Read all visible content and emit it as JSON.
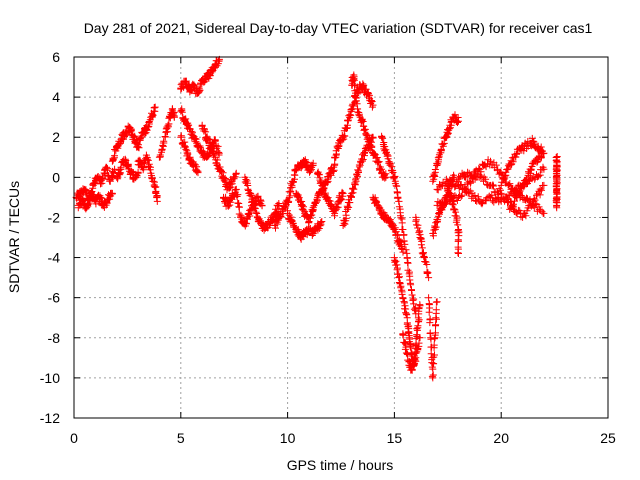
{
  "chart_data": {
    "type": "scatter",
    "title": "Day 281 of 2021, Sidereal Day-to-day VTEC variation (SDTVAR) for receiver cas1",
    "xlabel": "GPS time / hours",
    "ylabel": "SDTVAR / TECUs",
    "xlim": [
      0,
      25
    ],
    "ylim": [
      -12,
      6
    ],
    "xticks": [
      0,
      5,
      10,
      15,
      20,
      25
    ],
    "yticks": [
      -12,
      -10,
      -8,
      -6,
      -4,
      -2,
      0,
      2,
      4,
      6
    ],
    "grid": true,
    "marker": "+",
    "series": [
      {
        "name": "cas1",
        "color": "#ff0000",
        "tracks": [
          [
            [
              0.1,
              -1.0
            ],
            [
              0.3,
              -0.8
            ],
            [
              0.5,
              -0.6
            ],
            [
              0.7,
              -1.1
            ],
            [
              0.9,
              -0.4
            ],
            [
              1.1,
              0.0
            ],
            [
              1.3,
              -0.3
            ],
            [
              1.5,
              0.5
            ],
            [
              1.7,
              -0.2
            ],
            [
              1.9,
              0.4
            ]
          ],
          [
            [
              0.2,
              -1.4
            ],
            [
              0.4,
              -1.2
            ],
            [
              0.6,
              -1.5
            ],
            [
              0.8,
              -0.9
            ],
            [
              1.0,
              -1.2
            ],
            [
              1.2,
              -1.0
            ],
            [
              1.4,
              -1.4
            ],
            [
              1.6,
              -1.1
            ],
            [
              1.8,
              -0.8
            ]
          ],
          [
            [
              1.8,
              0.8
            ],
            [
              2.0,
              1.5
            ],
            [
              2.2,
              1.9
            ],
            [
              2.4,
              2.2
            ],
            [
              2.6,
              2.5
            ],
            [
              2.8,
              2.0
            ],
            [
              3.0,
              1.5
            ],
            [
              3.2,
              2.2
            ],
            [
              3.4,
              2.4
            ],
            [
              3.6,
              3.0
            ],
            [
              3.8,
              3.5
            ]
          ],
          [
            [
              2.0,
              0.0
            ],
            [
              2.2,
              0.5
            ],
            [
              2.4,
              0.9
            ],
            [
              2.6,
              0.3
            ],
            [
              2.8,
              0.0
            ],
            [
              3.0,
              0.2
            ]
          ],
          [
            [
              3.0,
              0.8
            ],
            [
              3.2,
              0.5
            ],
            [
              3.4,
              1.0
            ],
            [
              3.6,
              0.2
            ],
            [
              3.8,
              -0.5
            ],
            [
              3.9,
              -1.2
            ]
          ],
          [
            [
              4.0,
              1.0
            ],
            [
              4.2,
              1.8
            ],
            [
              4.4,
              2.6
            ],
            [
              4.6,
              3.4
            ],
            [
              4.7,
              3.0
            ]
          ],
          [
            [
              5.0,
              4.4
            ],
            [
              5.2,
              4.8
            ],
            [
              5.4,
              4.4
            ],
            [
              5.6,
              4.6
            ],
            [
              5.8,
              4.2
            ],
            [
              6.0,
              4.8
            ],
            [
              6.2,
              5.0
            ],
            [
              6.4,
              5.2
            ],
            [
              6.6,
              5.6
            ],
            [
              6.8,
              5.8
            ]
          ],
          [
            [
              5.0,
              3.3
            ],
            [
              5.2,
              2.8
            ],
            [
              5.4,
              2.4
            ],
            [
              5.6,
              2.0
            ],
            [
              5.8,
              1.6
            ],
            [
              6.0,
              1.2
            ],
            [
              6.2,
              1.0
            ],
            [
              6.4,
              1.4
            ],
            [
              6.6,
              1.8
            ],
            [
              6.8,
              1.2
            ]
          ],
          [
            [
              5.0,
              2.0
            ],
            [
              5.2,
              1.5
            ],
            [
              5.4,
              0.9
            ],
            [
              5.6,
              0.6
            ],
            [
              5.8,
              0.3
            ]
          ],
          [
            [
              6.0,
              2.6
            ],
            [
              6.2,
              2.0
            ],
            [
              6.4,
              1.6
            ],
            [
              6.6,
              1.0
            ],
            [
              6.8,
              0.4
            ],
            [
              7.0,
              0.0
            ],
            [
              7.2,
              -0.5
            ],
            [
              7.4,
              -0.2
            ],
            [
              7.6,
              0.2
            ]
          ],
          [
            [
              7.0,
              -1.0
            ],
            [
              7.2,
              -1.4
            ],
            [
              7.4,
              -1.0
            ],
            [
              7.6,
              -0.6
            ],
            [
              7.8,
              -2.0
            ],
            [
              8.0,
              -2.3
            ],
            [
              8.2,
              -1.8
            ],
            [
              8.4,
              -1.4
            ],
            [
              8.6,
              -1.0
            ],
            [
              8.8,
              -1.4
            ]
          ],
          [
            [
              8.0,
              0.0
            ],
            [
              8.2,
              -0.8
            ],
            [
              8.4,
              -1.2
            ],
            [
              8.6,
              -2.0
            ],
            [
              8.8,
              -2.4
            ],
            [
              9.0,
              -2.5
            ],
            [
              9.2,
              -2.2
            ],
            [
              9.4,
              -1.8
            ],
            [
              9.6,
              -1.4
            ]
          ],
          [
            [
              9.4,
              -2.4
            ],
            [
              9.6,
              -2.0
            ],
            [
              9.8,
              -1.6
            ],
            [
              10.0,
              -1.2
            ],
            [
              10.2,
              -0.4
            ],
            [
              10.4,
              0.4
            ],
            [
              10.6,
              0.6
            ],
            [
              10.8,
              0.8
            ],
            [
              11.0,
              0.4
            ],
            [
              11.2,
              0.6
            ]
          ],
          [
            [
              10.0,
              -1.8
            ],
            [
              10.2,
              -2.2
            ],
            [
              10.4,
              -2.6
            ],
            [
              10.6,
              -3.0
            ],
            [
              10.8,
              -2.8
            ],
            [
              11.0,
              -2.6
            ],
            [
              11.2,
              -2.8
            ],
            [
              11.4,
              -2.5
            ],
            [
              11.6,
              -2.2
            ]
          ],
          [
            [
              10.4,
              -0.8
            ],
            [
              10.6,
              -1.2
            ],
            [
              10.8,
              -1.8
            ],
            [
              11.0,
              -2.2
            ],
            [
              11.2,
              -1.6
            ],
            [
              11.4,
              -1.0
            ],
            [
              11.6,
              -0.6
            ],
            [
              11.8,
              -0.2
            ],
            [
              12.0,
              0.2
            ],
            [
              12.2,
              0.6
            ]
          ],
          [
            [
              11.4,
              0.2
            ],
            [
              11.6,
              -0.4
            ],
            [
              11.8,
              -1.0
            ],
            [
              12.0,
              -1.4
            ],
            [
              12.2,
              -1.8
            ],
            [
              12.4,
              -1.2
            ],
            [
              12.6,
              -0.8
            ]
          ],
          [
            [
              12.2,
              1.0
            ],
            [
              12.4,
              1.6
            ],
            [
              12.6,
              2.0
            ],
            [
              12.8,
              2.6
            ],
            [
              13.0,
              3.4
            ],
            [
              13.2,
              4.2
            ],
            [
              13.4,
              4.6
            ],
            [
              13.6,
              4.4
            ],
            [
              13.8,
              4.0
            ],
            [
              14.0,
              3.6
            ]
          ],
          [
            [
              12.6,
              -2.4
            ],
            [
              12.8,
              -1.6
            ],
            [
              13.0,
              -0.8
            ],
            [
              13.2,
              -0.2
            ],
            [
              13.4,
              0.6
            ],
            [
              13.6,
              1.2
            ],
            [
              13.8,
              1.6
            ],
            [
              14.0,
              2.0
            ]
          ],
          [
            [
              13.0,
              4.6
            ],
            [
              13.1,
              5.1
            ],
            [
              13.2,
              3.8
            ],
            [
              13.4,
              3.0
            ],
            [
              13.6,
              2.4
            ],
            [
              13.8,
              1.8
            ],
            [
              14.0,
              1.2
            ],
            [
              14.2,
              0.8
            ],
            [
              14.4,
              0.2
            ],
            [
              14.6,
              0.0
            ]
          ],
          [
            [
              14.0,
              -1.0
            ],
            [
              14.2,
              -1.4
            ],
            [
              14.4,
              -1.8
            ],
            [
              14.6,
              -2.0
            ],
            [
              14.8,
              -2.2
            ],
            [
              15.0,
              -2.6
            ],
            [
              15.2,
              -3.2
            ],
            [
              15.4,
              -3.6
            ]
          ],
          [
            [
              14.4,
              2.0
            ],
            [
              14.6,
              1.2
            ],
            [
              14.8,
              0.6
            ],
            [
              15.0,
              0.0
            ],
            [
              15.2,
              -1.2
            ],
            [
              15.4,
              -2.6
            ],
            [
              15.6,
              -4.0
            ],
            [
              15.8,
              -5.6
            ],
            [
              16.0,
              -6.8
            ]
          ],
          [
            [
              15.0,
              -4.0
            ],
            [
              15.2,
              -5.0
            ],
            [
              15.4,
              -6.0
            ],
            [
              15.6,
              -7.0
            ],
            [
              15.7,
              -8.0
            ],
            [
              15.8,
              -8.8
            ],
            [
              15.9,
              -9.4
            ],
            [
              16.0,
              -8.4
            ],
            [
              16.1,
              -7.4
            ],
            [
              16.2,
              -6.4
            ]
          ],
          [
            [
              15.4,
              -7.8
            ],
            [
              15.6,
              -8.8
            ],
            [
              15.8,
              -9.6
            ],
            [
              16.0,
              -9.0
            ],
            [
              16.2,
              -8.0
            ]
          ],
          [
            [
              16.6,
              -6.0
            ],
            [
              16.7,
              -8.0
            ],
            [
              16.8,
              -10.0
            ],
            [
              16.9,
              -8.0
            ],
            [
              17.0,
              -6.2
            ]
          ],
          [
            [
              16.8,
              -2.8
            ],
            [
              17.0,
              -2.2
            ],
            [
              17.2,
              -1.6
            ],
            [
              17.4,
              -1.0
            ],
            [
              17.6,
              -0.4
            ],
            [
              17.8,
              0.0
            ]
          ],
          [
            [
              16.8,
              -0.2
            ],
            [
              17.0,
              0.6
            ],
            [
              17.2,
              1.4
            ],
            [
              17.4,
              2.0
            ],
            [
              17.6,
              2.6
            ],
            [
              17.8,
              3.0
            ],
            [
              18.0,
              2.8
            ]
          ],
          [
            [
              17.6,
              -0.8
            ],
            [
              17.8,
              -1.6
            ],
            [
              18.0,
              -2.6
            ],
            [
              18.0,
              -3.8
            ]
          ],
          [
            [
              16.0,
              -2.0
            ],
            [
              16.2,
              -3.0
            ],
            [
              16.4,
              -4.0
            ],
            [
              16.6,
              -5.0
            ]
          ],
          [
            [
              17.0,
              -1.4
            ],
            [
              17.5,
              -1.2
            ],
            [
              18.0,
              -1.0
            ],
            [
              18.5,
              -0.2
            ],
            [
              19.0,
              0.4
            ],
            [
              19.5,
              0.8
            ],
            [
              20.0,
              0.2
            ],
            [
              20.5,
              -0.6
            ],
            [
              21.0,
              -1.0
            ],
            [
              21.5,
              -1.4
            ],
            [
              22.0,
              -1.8
            ]
          ],
          [
            [
              17.0,
              -0.6
            ],
            [
              17.5,
              -0.2
            ],
            [
              18.0,
              -0.4
            ],
            [
              18.5,
              -0.8
            ],
            [
              19.0,
              -1.2
            ],
            [
              19.5,
              -1.0
            ],
            [
              20.0,
              -1.2
            ],
            [
              20.5,
              -0.8
            ],
            [
              21.0,
              -0.4
            ],
            [
              21.5,
              0.0
            ],
            [
              22.0,
              0.4
            ]
          ],
          [
            [
              18.0,
              0.0
            ],
            [
              18.5,
              0.2
            ],
            [
              19.0,
              0.0
            ],
            [
              19.5,
              -0.4
            ],
            [
              20.0,
              -0.8
            ],
            [
              20.5,
              -1.4
            ],
            [
              21.0,
              -2.0
            ],
            [
              21.5,
              -1.2
            ],
            [
              22.0,
              -0.4
            ]
          ],
          [
            [
              20.0,
              -0.4
            ],
            [
              20.3,
              0.4
            ],
            [
              20.6,
              1.0
            ],
            [
              20.9,
              1.4
            ],
            [
              21.2,
              1.6
            ],
            [
              21.5,
              1.8
            ],
            [
              21.8,
              1.4
            ],
            [
              22.0,
              1.2
            ]
          ],
          [
            [
              20.4,
              -1.6
            ],
            [
              20.7,
              -1.0
            ],
            [
              21.0,
              -0.4
            ],
            [
              21.3,
              0.2
            ],
            [
              21.6,
              0.8
            ],
            [
              21.9,
              1.2
            ]
          ],
          [
            [
              22.6,
              1.0
            ],
            [
              22.6,
              0.6
            ],
            [
              22.6,
              0.2
            ],
            [
              22.6,
              -0.2
            ],
            [
              22.6,
              -0.6
            ],
            [
              22.6,
              -1.0
            ],
            [
              22.6,
              -1.4
            ]
          ]
        ]
      }
    ]
  }
}
